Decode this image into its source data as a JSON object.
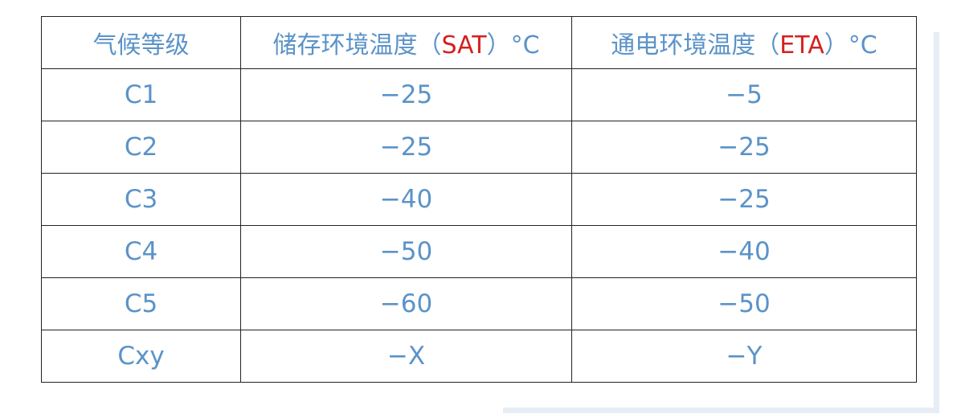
{
  "table": {
    "headers": [
      {
        "before": "气候等级",
        "code": "",
        "after": ""
      },
      {
        "before": "储存环境温度（",
        "code": "SAT",
        "after": "）°C"
      },
      {
        "before": "通电环境温度（",
        "code": "ETA",
        "after": "）°C"
      }
    ],
    "rows": [
      [
        "C1",
        "−25",
        "−5"
      ],
      [
        "C2",
        "−25",
        "−25"
      ],
      [
        "C3",
        "−40",
        "−25"
      ],
      [
        "C4",
        "−50",
        "−40"
      ],
      [
        "C5",
        "−60",
        "−50"
      ],
      [
        "Cxy",
        "−X",
        "−Y"
      ]
    ]
  },
  "colors": {
    "text": "#5b93c8",
    "highlight": "#d42020",
    "border": "#222222",
    "frame": "#e6edf5"
  }
}
